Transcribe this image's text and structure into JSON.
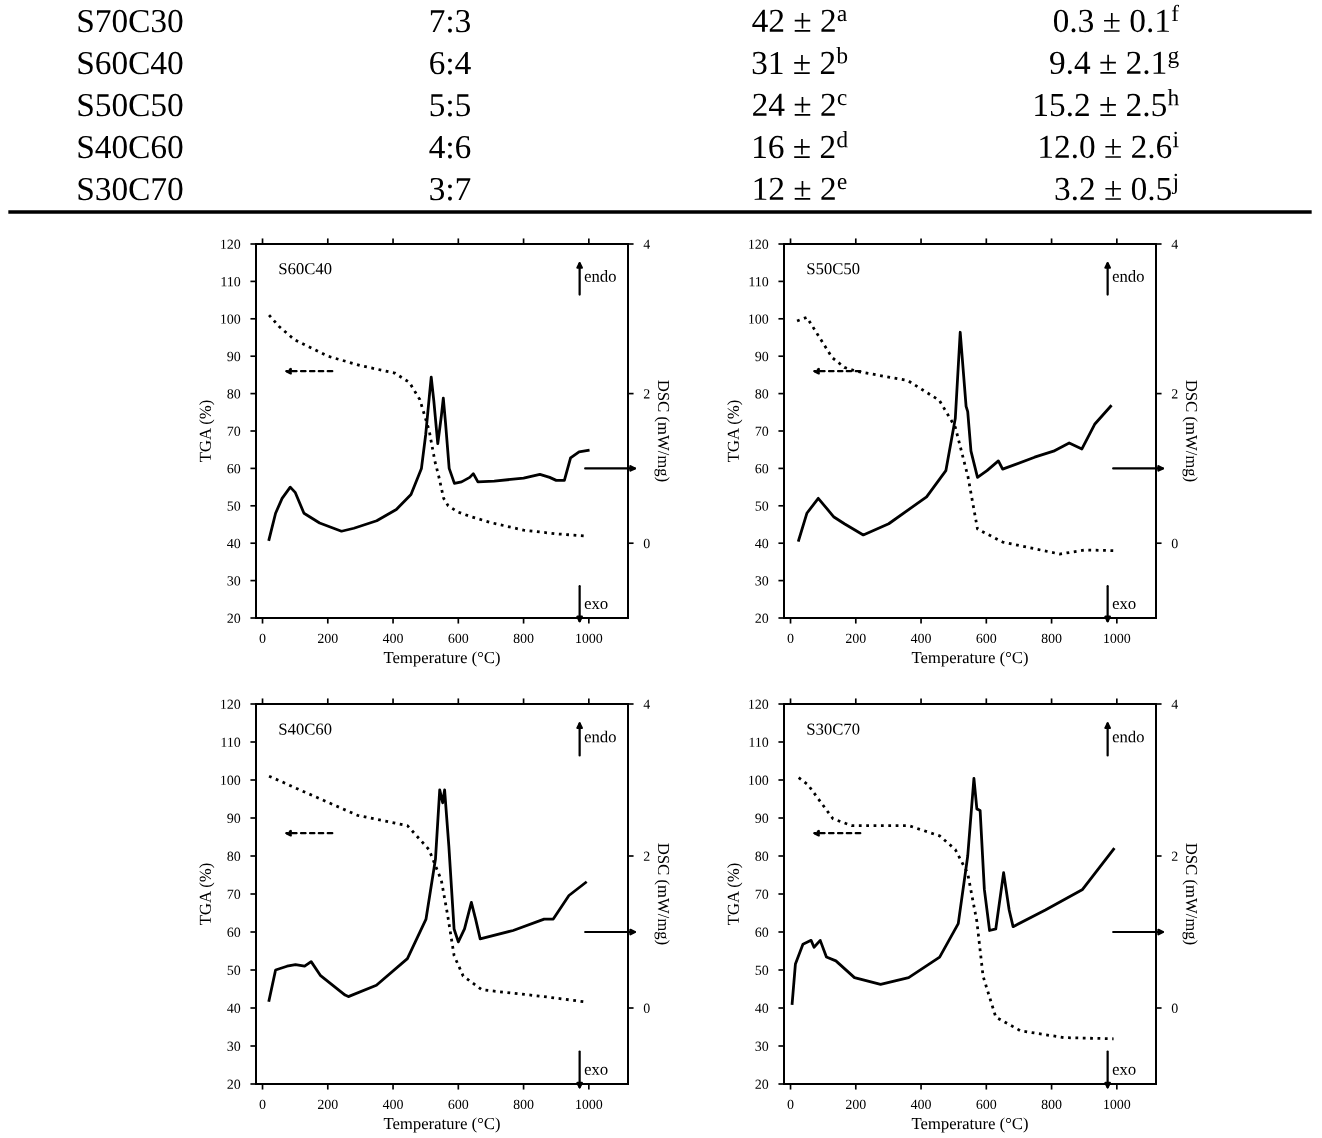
{
  "chart_data": [
    {
      "type": "other",
      "annotations": [
        "S70C30",
        "7:3",
        "42 ± 2$^{a}$",
        "0.3 ± 0.1$^{f}$",
        "S60C40",
        "6:4",
        "31 ± 2$^{b}$",
        "9.4 ± 2.1$^{g}$",
        "S50C50",
        "5:5",
        "24 ± 2$^{c}$",
        "15.2 ± 2.5$^{h}$",
        "S40C60",
        "4:6",
        "16 ± 2$^{d}$",
        "12.0 ± 2.6$^{i}$",
        "S30C70",
        "3:7",
        "12 ± 2$^{e}$",
        "3.2 ± 0.5$^{j}$"
      ]
    },
    {
      "type": "line",
      "title": "S60C40",
      "xlabel": "Temperature (°C)",
      "ylabel": "TGA (%)",
      "y2label": "DSC (mW/mg)",
      "annotations": [
        "endo",
        "exo"
      ],
      "xlim": [
        -20,
        1120
      ],
      "xticks": [
        0,
        200,
        400,
        600,
        800,
        1000
      ],
      "ylim": [
        20,
        120
      ],
      "yticks": [
        20,
        30,
        40,
        50,
        60,
        70,
        80,
        90,
        100,
        110,
        120
      ],
      "y2lim": [
        -1,
        4
      ],
      "y2ticks": [
        0,
        2,
        4
      ],
      "grid": false,
      "legend": false,
      "marker": "none",
      "series": [
        {
          "color": "#000000",
          "line_style": "dotted",
          "x": [
            20,
            50,
            98,
            200,
            300,
            405,
            450,
            482,
            511,
            528,
            540,
            555,
            569,
            600,
            635,
            700,
            800,
            900,
            998
          ],
          "values": [
            101,
            98,
            94.4,
            90,
            87.5,
            85.5,
            83,
            78.4,
            70,
            62,
            57.9,
            52,
            50,
            48.3,
            47.2,
            45.5,
            43.5,
            42.5,
            41.9
          ]
        },
        {
          "color": "#000000",
          "line_style": "solid",
          "axis": "y2",
          "x": [
            20,
            40,
            60,
            85,
            100,
            127,
            175,
            242,
            280,
            350,
            410,
            455,
            487,
            500,
            512,
            517,
            525,
            537,
            548,
            554,
            561,
            572,
            588,
            610,
            635,
            646,
            660,
            710,
            800,
            850,
            880,
            900,
            925,
            944,
            970,
            998
          ],
          "values": [
            0.05,
            0.4,
            0.6,
            0.75,
            0.68,
            0.4,
            0.27,
            0.16,
            0.2,
            0.3,
            0.45,
            0.65,
            1.0,
            1.45,
            2.0,
            2.22,
            1.9,
            1.33,
            1.7,
            1.94,
            1.6,
            1.0,
            0.8,
            0.82,
            0.88,
            0.93,
            0.82,
            0.83,
            0.87,
            0.92,
            0.88,
            0.84,
            0.84,
            1.14,
            1.22,
            1.24
          ]
        }
      ]
    },
    {
      "type": "line",
      "title": "S50C50",
      "xlabel": "Temperature (°C)",
      "ylabel": "TGA (%)",
      "y2label": "DSC (mW/mg)",
      "annotations": [
        "endo",
        "exo"
      ],
      "xlim": [
        -20,
        1120
      ],
      "xticks": [
        0,
        200,
        400,
        600,
        800,
        1000
      ],
      "ylim": [
        20,
        120
      ],
      "yticks": [
        20,
        30,
        40,
        50,
        60,
        70,
        80,
        90,
        100,
        110,
        120
      ],
      "y2lim": [
        -1,
        4
      ],
      "y2ticks": [
        0,
        2,
        4
      ],
      "grid": false,
      "legend": false,
      "marker": "none",
      "series": [
        {
          "color": "#000000",
          "line_style": "dotted",
          "x": [
            20,
            50,
            127,
            165,
            200,
            359,
            456,
            505,
            544,
            573,
            650,
            825,
            903,
            990
          ],
          "values": [
            99.4,
            100.4,
            89.7,
            87,
            86,
            83.5,
            78.2,
            71,
            57.7,
            43.8,
            40.3,
            37.1,
            38.2,
            38
          ]
        },
        {
          "color": "#000000",
          "line_style": "solid",
          "axis": "y2",
          "x": [
            25,
            50,
            85,
            133,
            165,
            223,
            301,
            417,
            476,
            505,
            520,
            538,
            543,
            553,
            573,
            602,
            637,
            650,
            748,
            806,
            854,
            893,
            932,
            981
          ],
          "values": [
            0.04,
            0.4,
            0.6,
            0.35,
            0.26,
            0.11,
            0.26,
            0.62,
            0.97,
            1.67,
            2.82,
            1.83,
            1.76,
            1.23,
            0.88,
            0.97,
            1.1,
            0.99,
            1.15,
            1.23,
            1.34,
            1.26,
            1.59,
            1.83
          ]
        }
      ]
    },
    {
      "type": "line",
      "title": "S40C60",
      "xlabel": "Temperature (°C)",
      "ylabel": "TGA (%)",
      "y2label": "DSC (mW/mg)",
      "annotations": [
        "endo",
        "exo"
      ],
      "xlim": [
        -20,
        1120
      ],
      "xticks": [
        0,
        200,
        400,
        600,
        800,
        1000
      ],
      "ylim": [
        20,
        120
      ],
      "yticks": [
        20,
        30,
        40,
        50,
        60,
        70,
        80,
        90,
        100,
        110,
        120
      ],
      "y2lim": [
        -1,
        4
      ],
      "y2ticks": [
        0,
        2,
        4
      ],
      "grid": false,
      "legend": false,
      "marker": "none",
      "series": [
        {
          "color": "#000000",
          "line_style": "dotted",
          "x": [
            20,
            60,
            101,
            291,
            444,
            510,
            548,
            567,
            587,
            615,
            672,
            863,
            990
          ],
          "values": [
            101,
            99.5,
            97.9,
            90.7,
            88,
            81.7,
            73.6,
            64.6,
            53.8,
            48.4,
            44.8,
            43,
            41.6
          ]
        },
        {
          "color": "#000000",
          "line_style": "solid",
          "axis": "y2",
          "x": [
            20,
            40,
            75,
            101,
            129,
            149,
            177,
            253,
            263,
            349,
            444,
            501,
            530,
            543,
            552,
            558,
            571,
            587,
            600,
            619,
            640,
            653,
            667,
            768,
            863,
            891,
            939,
            990
          ],
          "values": [
            0.1,
            0.5,
            0.55,
            0.57,
            0.55,
            0.61,
            0.43,
            0.17,
            0.15,
            0.3,
            0.65,
            1.17,
            1.96,
            2.87,
            2.7,
            2.87,
            2.13,
            1.04,
            0.87,
            1.04,
            1.39,
            1.17,
            0.91,
            1.02,
            1.17,
            1.17,
            1.48,
            1.65
          ]
        }
      ]
    },
    {
      "type": "line",
      "title": "S30C70",
      "xlabel": "Temperature (°C)",
      "ylabel": "TGA (%)",
      "y2label": "DSC (mW/mg)",
      "annotations": [
        "endo",
        "exo"
      ],
      "xlim": [
        -20,
        1120
      ],
      "xticks": [
        0,
        200,
        400,
        600,
        800,
        1000
      ],
      "ylim": [
        20,
        120
      ],
      "yticks": [
        20,
        30,
        40,
        50,
        60,
        70,
        80,
        90,
        100,
        110,
        120
      ],
      "y2lim": [
        -1,
        4
      ],
      "y2ticks": [
        0,
        2,
        4
      ],
      "grid": false,
      "legend": false,
      "marker": "none",
      "series": [
        {
          "color": "#000000",
          "line_style": "dotted",
          "x": [
            25,
            53,
            130,
            187,
            362,
            457,
            505,
            543,
            571,
            590,
            629,
            705,
            838,
            990
          ],
          "values": [
            100.6,
            98.8,
            89.8,
            88,
            88,
            85.3,
            81.7,
            75.4,
            62.8,
            48.4,
            37.6,
            34,
            32.2,
            31.9
          ]
        },
        {
          "color": "#000000",
          "line_style": "solid",
          "axis": "y2",
          "x": [
            5,
            15,
            38,
            63,
            72,
            91,
            110,
            139,
            196,
            276,
            362,
            457,
            514,
            543,
            562,
            571,
            581,
            594,
            610,
            629,
            653,
            670,
            682,
            781,
            895,
            990
          ],
          "values": [
            0.06,
            0.58,
            0.84,
            0.89,
            0.8,
            0.89,
            0.67,
            0.62,
            0.4,
            0.31,
            0.4,
            0.67,
            1.11,
            2.0,
            3.02,
            2.62,
            2.6,
            1.56,
            1.02,
            1.04,
            1.78,
            1.29,
            1.07,
            1.29,
            1.56,
            2.09
          ]
        }
      ]
    }
  ]
}
